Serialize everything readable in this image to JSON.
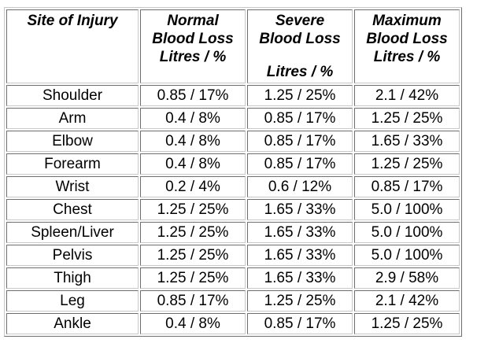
{
  "table": {
    "headers": {
      "site": [
        "Site of Injury"
      ],
      "normal": [
        "Normal",
        "Blood Loss",
        "Litres / %"
      ],
      "severe_top": [
        "Severe",
        "Blood Loss"
      ],
      "severe_bottom": "Litres / %",
      "maximum": [
        "Maximum",
        "Blood Loss",
        "Litres / %"
      ]
    },
    "rows": [
      {
        "site": "Shoulder",
        "normal": "0.85 / 17%",
        "severe": "1.25 / 25%",
        "maximum": "2.1 / 42%"
      },
      {
        "site": "Arm",
        "normal": "0.4 / 8%",
        "severe": "0.85 / 17%",
        "maximum": "1.25 / 25%"
      },
      {
        "site": "Elbow",
        "normal": "0.4 / 8%",
        "severe": "0.85 / 17%",
        "maximum": "1.65 / 33%"
      },
      {
        "site": "Forearm",
        "normal": "0.4 / 8%",
        "severe": "0.85 / 17%",
        "maximum": "1.25 / 25%"
      },
      {
        "site": "Wrist",
        "normal": "0.2 / 4%",
        "severe": "0.6 / 12%",
        "maximum": "0.85 / 17%"
      },
      {
        "site": "Chest",
        "normal": "1.25 / 25%",
        "severe": "1.65 / 33%",
        "maximum": "5.0 / 100%"
      },
      {
        "site": "Spleen/Liver",
        "normal": "1.25 / 25%",
        "severe": "1.65 / 33%",
        "maximum": "5.0 / 100%"
      },
      {
        "site": "Pelvis",
        "normal": "1.25 / 25%",
        "severe": "1.65 / 33%",
        "maximum": "5.0 / 100%"
      },
      {
        "site": "Thigh",
        "normal": "1.25 / 25%",
        "severe": "1.65 / 33%",
        "maximum": "2.9 / 58%"
      },
      {
        "site": "Leg",
        "normal": "0.85 / 17%",
        "severe": "1.25 / 25%",
        "maximum": "2.1 / 42%"
      },
      {
        "site": "Ankle",
        "normal": "0.4 / 8%",
        "severe": "0.85 / 17%",
        "maximum": "1.25 / 25%"
      }
    ]
  }
}
